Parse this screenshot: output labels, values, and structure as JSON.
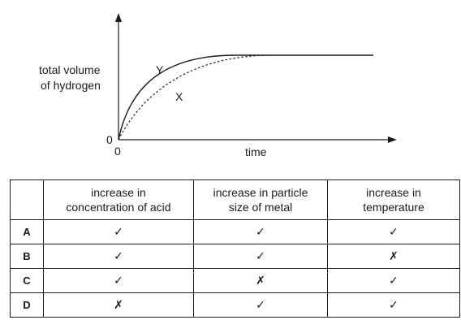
{
  "graph": {
    "ylabel_line1": "total volume",
    "ylabel_line2": "of hydrogen",
    "xlabel": "time",
    "y_origin": "0",
    "x_origin": "0",
    "curve_labels": {
      "solid": "Y",
      "dashed": "X"
    }
  },
  "table": {
    "headers": [
      {
        "line1": "increase in",
        "line2": "concentration of acid"
      },
      {
        "line1": "increase in particle",
        "line2": "size of metal"
      },
      {
        "line1": "increase in",
        "line2": "temperature"
      }
    ],
    "rows": [
      {
        "label": "A",
        "cells": [
          "✓",
          "✓",
          "✓"
        ]
      },
      {
        "label": "B",
        "cells": [
          "✓",
          "✓",
          "✗"
        ]
      },
      {
        "label": "C",
        "cells": [
          "✓",
          "✗",
          "✓"
        ]
      },
      {
        "label": "D",
        "cells": [
          "✗",
          "✓",
          "✓"
        ]
      }
    ]
  }
}
